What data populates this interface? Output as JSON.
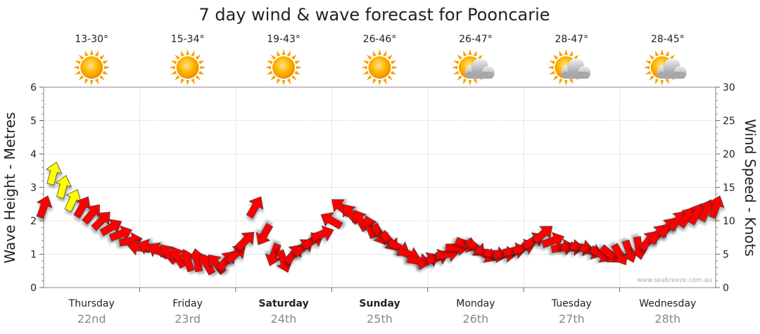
{
  "chart_data": {
    "type": "line",
    "title": "7 day wind & wave forecast for Pooncarie",
    "ylabel_left": "Wave Height - Metres",
    "ylabel_right": "Wind Speed - Knots",
    "ylim_left": [
      0,
      6
    ],
    "ylim_right": [
      0,
      30
    ],
    "yticks_left": [
      "0",
      "1",
      "2",
      "3",
      "4",
      "5",
      "6"
    ],
    "yticks_right": [
      "0",
      "5",
      "10",
      "15",
      "20",
      "25",
      "30"
    ],
    "grid": true,
    "credit": "www.seabreeze.com.au",
    "days": [
      {
        "name": "Thursday",
        "date": "22nd",
        "temp": "13-30°",
        "weather": "sunny",
        "bold": false
      },
      {
        "name": "Friday",
        "date": "23rd",
        "temp": "15-34°",
        "weather": "sunny",
        "bold": false
      },
      {
        "name": "Saturday",
        "date": "24th",
        "temp": "19-43°",
        "weather": "sunny",
        "bold": true
      },
      {
        "name": "Sunday",
        "date": "25th",
        "temp": "26-46°",
        "weather": "sunny",
        "bold": true
      },
      {
        "name": "Monday",
        "date": "26th",
        "temp": "26-47°",
        "weather": "partly-cloudy",
        "bold": false
      },
      {
        "name": "Tuesday",
        "date": "27th",
        "temp": "28-47°",
        "weather": "partly-cloudy",
        "bold": false
      },
      {
        "name": "Wednesday",
        "date": "28th",
        "temp": "28-45°",
        "weather": "partly-cloudy",
        "bold": false
      }
    ],
    "series": [
      {
        "name": "Wind Speed",
        "colors": {
          "strong": "#ffff00",
          "normal": "#ff0000"
        },
        "x_days": [
          0.0,
          0.1,
          0.2,
          0.3,
          0.4,
          0.5,
          0.6,
          0.7,
          0.8,
          0.9,
          1.0,
          1.1,
          1.2,
          1.3,
          1.4,
          1.5,
          1.6,
          1.7,
          1.8,
          1.9,
          2.0,
          2.1,
          2.2,
          2.3,
          2.4,
          2.5,
          2.6,
          2.7,
          2.8,
          2.9,
          3.0,
          3.1,
          3.2,
          3.3,
          3.4,
          3.5,
          3.6,
          3.7,
          3.8,
          3.9,
          4.0,
          4.1,
          4.2,
          4.3,
          4.4,
          4.5,
          4.6,
          4.7,
          4.8,
          4.9,
          5.0,
          5.1,
          5.2,
          5.3,
          5.4,
          5.5,
          5.6,
          5.7,
          5.8,
          5.9,
          6.0,
          6.1,
          6.2,
          6.3,
          6.4,
          6.5,
          6.6,
          6.7,
          6.8,
          6.9,
          7.0
        ],
        "values": [
          12,
          17,
          15,
          13,
          12,
          11,
          10,
          9,
          8,
          7,
          6,
          6,
          5.5,
          5,
          4.5,
          4,
          4,
          3.5,
          3.5,
          4,
          5,
          7,
          12,
          8,
          5,
          4,
          5,
          6,
          7,
          8,
          10,
          12,
          11,
          10,
          9,
          8,
          7,
          6,
          5,
          4,
          4,
          4.5,
          5,
          6,
          6.5,
          6,
          5,
          5,
          5,
          5.5,
          6,
          7,
          8,
          7,
          6,
          6,
          6,
          5.5,
          5,
          5,
          5,
          5.5,
          6,
          7,
          8,
          9,
          10,
          10.5,
          11,
          11.5,
          12
        ],
        "directions_deg": [
          20,
          15,
          15,
          25,
          30,
          40,
          45,
          60,
          70,
          80,
          280,
          290,
          300,
          320,
          330,
          340,
          350,
          330,
          320,
          40,
          50,
          45,
          30,
          210,
          200,
          160,
          40,
          50,
          60,
          70,
          300,
          310,
          320,
          330,
          340,
          150,
          140,
          120,
          110,
          100,
          60,
          70,
          80,
          90,
          110,
          130,
          120,
          100,
          90,
          80,
          70,
          60,
          50,
          70,
          80,
          90,
          100,
          110,
          120,
          130,
          150,
          160,
          170,
          40,
          40,
          40,
          40,
          35,
          30,
          25,
          20
        ]
      }
    ]
  }
}
